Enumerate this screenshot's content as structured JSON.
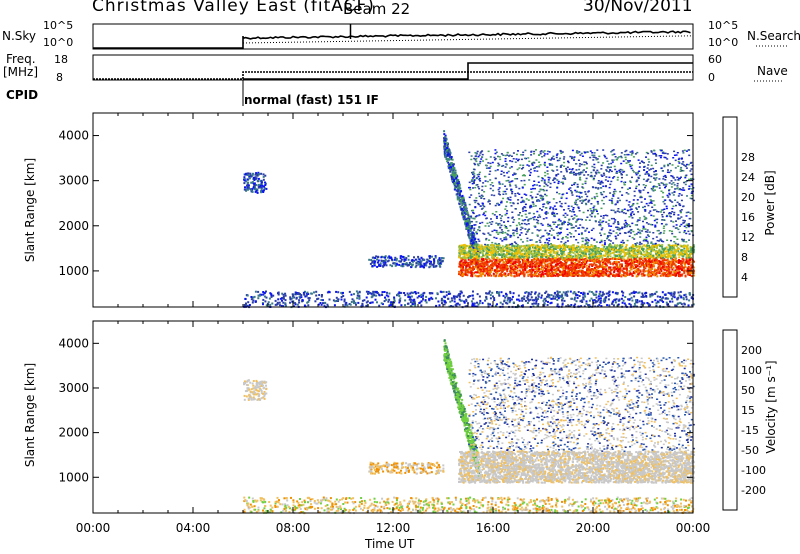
{
  "header": {
    "title": "Christmas Valley East (fitACF)",
    "beam": "Beam 22",
    "date": "30/Nov/2011"
  },
  "params_panels": {
    "nsky": {
      "label": "N.Sky",
      "ticks": [
        "10^5",
        "10^0"
      ],
      "right_ticks": [
        "10^5",
        "10^0"
      ],
      "right_label": "N.Search"
    },
    "freq": {
      "label": "Freq.",
      "unit": "[MHz]",
      "ticks": [
        "18",
        "8"
      ],
      "right_ticks": [
        "60",
        "0"
      ],
      "right_label": "Nave"
    },
    "cpid": {
      "label": "CPID",
      "mode": "normal (fast) 151 IF"
    }
  },
  "chart_data": [
    {
      "type": "heatmap",
      "name": "power",
      "ylabel": "Slant Range [km]",
      "yticks": [
        1000,
        2000,
        3000,
        4000
      ],
      "ylim": [
        200,
        4500
      ],
      "colorbar": {
        "label": "Power [dB]",
        "ticks": [
          4,
          8,
          12,
          16,
          20,
          24,
          28
        ],
        "colors": [
          "#0a14f0",
          "#2a3ca8",
          "#3a7a8a",
          "#48a05a",
          "#a8c43c",
          "#f0c000",
          "#f08a00",
          "#f03a00",
          "#f00000"
        ]
      }
    },
    {
      "type": "heatmap",
      "name": "velocity",
      "ylabel": "Slant Range [km]",
      "yticks": [
        1000,
        2000,
        3000,
        4000
      ],
      "ylim": [
        200,
        4500
      ],
      "colorbar": {
        "label": "Velocity [m s⁻¹]",
        "ticks": [
          200,
          100,
          50,
          15,
          -15,
          -50,
          -100,
          -200
        ],
        "colors": [
          "#2030a0",
          "#2858b0",
          "#3c8a5a",
          "#70d040",
          "#c8c8c8",
          "#f0c060",
          "#f09000",
          "#f05000",
          "#f01818"
        ]
      }
    }
  ],
  "time_axis": {
    "ticks": [
      "00:00",
      "04:00",
      "08:00",
      "12:00",
      "16:00",
      "20:00",
      "00:00"
    ],
    "xlabel": "Time UT"
  }
}
